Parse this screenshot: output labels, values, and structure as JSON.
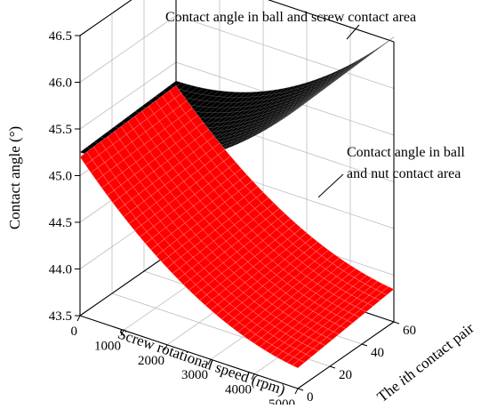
{
  "chart_data": {
    "type": "surface3d",
    "title": "",
    "xlabel": "Screw rotational speed (rpm)",
    "ylabel_parts": {
      "before": "The ",
      "italic": "i",
      "after": "th contact pair"
    },
    "zlabel": "Contact angle (°)",
    "x_ticks": [
      "0",
      "1000",
      "2000",
      "3000",
      "4000",
      "5000"
    ],
    "y_ticks": [
      "0",
      "20",
      "40",
      "60"
    ],
    "z_ticks": [
      "43.5",
      "44.0",
      "44.5",
      "45.0",
      "45.5",
      "46.0",
      "46.5"
    ],
    "xlim": [
      0,
      5000
    ],
    "ylim": [
      0,
      60
    ],
    "zlim": [
      43.5,
      46.5
    ],
    "grid": true,
    "series": [
      {
        "surface_color": "#000000",
        "annotation": "Contact angle in ball and screw contact area",
        "corners": [
          {
            "speed": 0,
            "pair": 0,
            "angle": 45.25
          },
          {
            "speed": 0,
            "pair": 60,
            "angle": 45.3
          },
          {
            "speed": 5000,
            "pair": 0,
            "angle": 46.5
          },
          {
            "speed": 5000,
            "pair": 60,
            "angle": 46.55
          }
        ]
      },
      {
        "surface_color": "#ff0000",
        "annotation_lines": [
          "Contact angle in ball",
          "and nut contact area"
        ],
        "corners": [
          {
            "speed": 0,
            "pair": 0,
            "angle": 45.2
          },
          {
            "speed": 0,
            "pair": 60,
            "angle": 45.25
          },
          {
            "speed": 5000,
            "pair": 0,
            "angle": 43.72
          },
          {
            "speed": 5000,
            "pair": 60,
            "angle": 43.85
          }
        ]
      }
    ]
  }
}
